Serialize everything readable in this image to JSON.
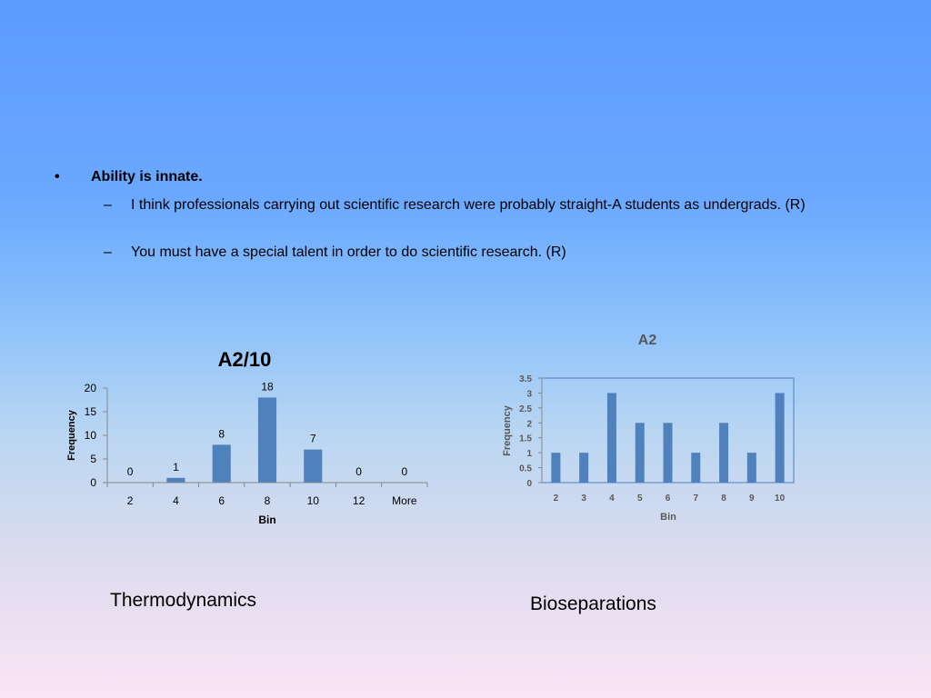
{
  "slide": {
    "bullet": "Ability is innate.",
    "bullet_marker": "•",
    "sub_marker": "–",
    "subpoints": [
      "I think professionals carrying out scientific research were probably straight-A students as undergrads. (R)",
      "You must have a special talent in order to do scientific research. (R)"
    ],
    "captions": [
      "Thermodynamics",
      "Bioseparations"
    ]
  },
  "chart_data": [
    {
      "type": "bar",
      "title": "A2/10",
      "xlabel": "Bin",
      "ylabel": "Frequency",
      "categories": [
        "2",
        "4",
        "6",
        "8",
        "10",
        "12",
        "More"
      ],
      "values": [
        0,
        1,
        8,
        18,
        7,
        0,
        0
      ],
      "data_labels": true,
      "ylim": [
        0,
        20
      ],
      "yticks": [
        0,
        5,
        10,
        15,
        20
      ],
      "bar_color": "#4f81bd",
      "grid": false,
      "legend": "none"
    },
    {
      "type": "bar",
      "title": "A2",
      "xlabel": "Bin",
      "ylabel": "Frequency",
      "categories": [
        "2",
        "3",
        "4",
        "5",
        "6",
        "7",
        "8",
        "9",
        "10"
      ],
      "values": [
        1,
        1,
        3,
        2,
        2,
        1,
        2,
        1,
        3
      ],
      "data_labels": false,
      "ylim": [
        0,
        3.5
      ],
      "yticks": [
        0,
        0.5,
        1,
        1.5,
        2,
        2.5,
        3,
        3.5
      ],
      "bar_color": "#4f81bd",
      "grid": false,
      "legend": "none"
    }
  ]
}
